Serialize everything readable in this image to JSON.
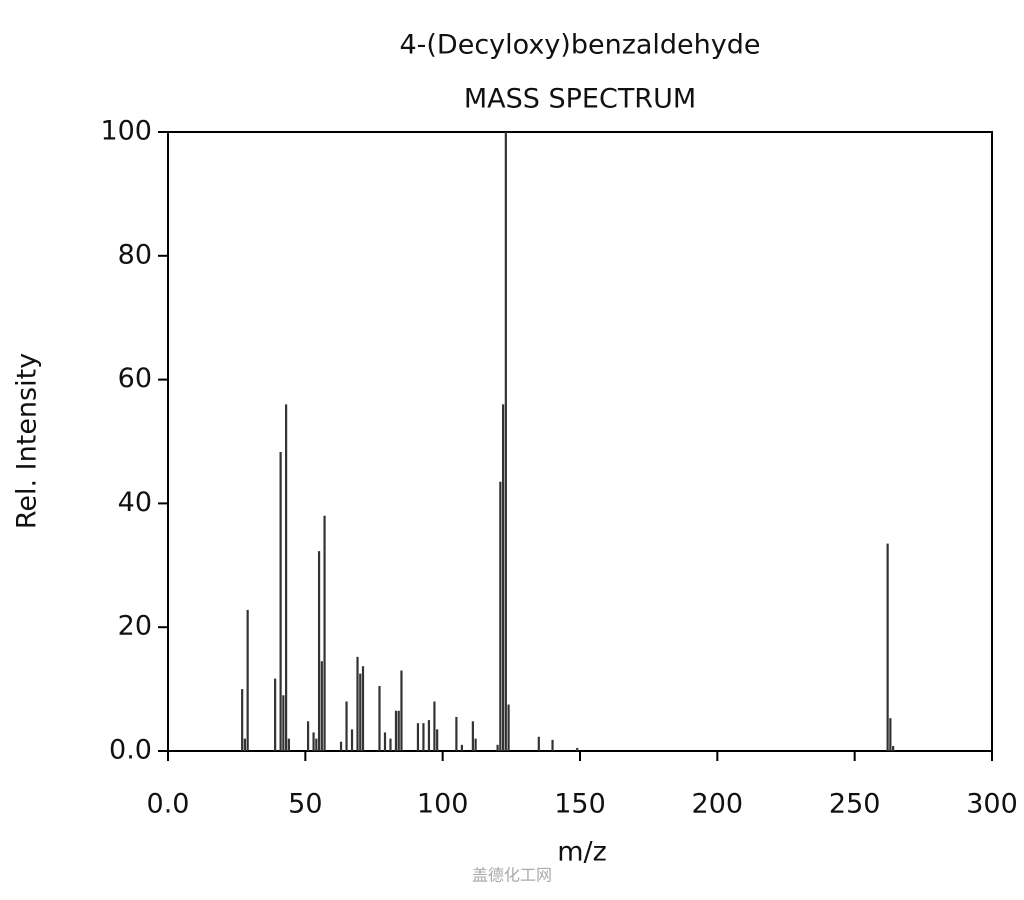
{
  "chart_data": {
    "type": "stem",
    "title": "4-(Decyloxy)benzaldehyde",
    "subtitle": "MASS SPECTRUM",
    "x_label": "m/z",
    "y_label": "Rel. Intensity",
    "watermark": "盖德化工网",
    "color": "#333333",
    "x": [
      27,
      28,
      29,
      39,
      41,
      42,
      43,
      44,
      51,
      53,
      54,
      55,
      56,
      57,
      63,
      65,
      67,
      69,
      70,
      71,
      77,
      79,
      81,
      83,
      84,
      85,
      91,
      93,
      95,
      97,
      98,
      105,
      107,
      111,
      112,
      120,
      121,
      122,
      123,
      124,
      135,
      140,
      149,
      262,
      263,
      264
    ],
    "values": [
      10,
      2,
      22.8,
      11.7,
      48.3,
      9,
      56,
      2,
      4.8,
      3,
      2,
      32.3,
      14.5,
      38,
      1.5,
      8,
      3.5,
      15.2,
      12.5,
      13.7,
      10.5,
      3,
      2,
      6.5,
      6.5,
      13,
      4.5,
      4.5,
      5,
      8,
      3.5,
      5.5,
      1,
      4.8,
      2,
      1,
      43.5,
      56,
      100,
      7.5,
      2.3,
      1.8,
      0.5,
      33.5,
      5.3,
      0.8
    ],
    "xlim": [
      0,
      300
    ],
    "ylim": [
      0,
      100
    ],
    "xticks": [
      {
        "value": 0,
        "label": "0.0"
      },
      50,
      100,
      150,
      200,
      250,
      300
    ],
    "yticks": [
      {
        "value": 0,
        "label": "0.0"
      },
      20,
      40,
      60,
      80,
      100
    ]
  }
}
